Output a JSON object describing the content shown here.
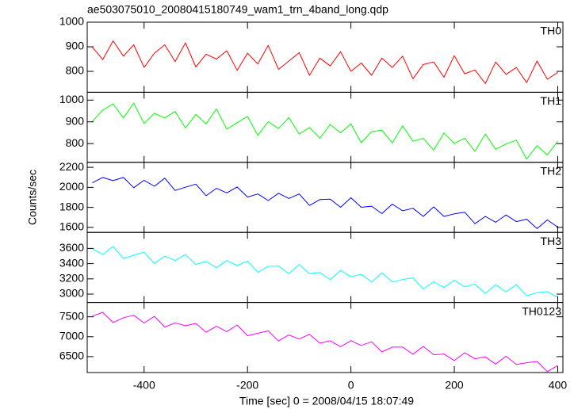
{
  "chart_data": {
    "type": "line",
    "title": "ae503075010_20080415180749_wam1_trn_4band_long.qdp",
    "xlabel": "Time [sec] 0 = 2008/04/15 18:07:49",
    "ylabel": "Counts/sec",
    "xlim": [
      -510,
      410
    ],
    "xticks": [
      -400,
      -200,
      0,
      200,
      400
    ],
    "x": [
      -500,
      -480,
      -460,
      -440,
      -420,
      -400,
      -380,
      -360,
      -340,
      -320,
      -300,
      -280,
      -260,
      -240,
      -220,
      -200,
      -180,
      -160,
      -140,
      -120,
      -100,
      -80,
      -60,
      -40,
      -20,
      0,
      20,
      40,
      60,
      80,
      100,
      120,
      140,
      160,
      180,
      200,
      220,
      240,
      260,
      280,
      300,
      320,
      340,
      360,
      380,
      400
    ],
    "series": [
      {
        "name": "TH0",
        "color": "#ff0000",
        "ylim": [
          715,
          1000
        ],
        "yticks": [
          800,
          900,
          1000
        ],
        "values": [
          898,
          848,
          924,
          862,
          908,
          816,
          874,
          908,
          840,
          916,
          818,
          870,
          850,
          884,
          804,
          874,
          830,
          906,
          808,
          842,
          876,
          784,
          854,
          822,
          880,
          800,
          834,
          784,
          854,
          816,
          862,
          770,
          828,
          838,
          776,
          864,
          790,
          806,
          750,
          838,
          788,
          816,
          754,
          842,
          768,
          796
        ]
      },
      {
        "name": "TH1",
        "color": "#00ff00",
        "ylim": [
          714,
          1036
        ],
        "yticks": [
          800,
          900,
          1000
        ],
        "values": [
          902,
          954,
          983,
          918,
          986,
          893,
          939,
          918,
          948,
          872,
          934,
          891,
          959,
          867,
          896,
          925,
          838,
          901,
          869,
          920,
          844,
          874,
          825,
          888,
          850,
          891,
          804,
          855,
          862,
          803,
          882,
          811,
          824,
          770,
          849,
          801,
          825,
          765,
          844,
          774,
          798,
          816,
          729,
          791,
          748,
          811
        ]
      },
      {
        "name": "TH2",
        "color": "#0000ff",
        "ylim": [
          1550,
          2250
        ],
        "yticks": [
          1600,
          1800,
          2000,
          2200
        ],
        "values": [
          2046,
          2099,
          2067,
          2099,
          1997,
          2071,
          2011,
          2092,
          1969,
          2001,
          2032,
          1917,
          1990,
          1945,
          2004,
          1903,
          1934,
          1868,
          1941,
          1889,
          1934,
          1819,
          1878,
          1882,
          1801,
          1896,
          1801,
          1812,
          1738,
          1833,
          1766,
          1791,
          1710,
          1805,
          1710,
          1735,
          1752,
          1637,
          1710,
          1651,
          1724,
          1658,
          1682,
          1588,
          1675,
          1602
        ]
      },
      {
        "name": "TH3",
        "color": "#00ffff",
        "ylim": [
          2890,
          3810
        ],
        "yticks": [
          3000,
          3200,
          3400,
          3600
        ],
        "values": [
          3596,
          3520,
          3625,
          3468,
          3510,
          3551,
          3403,
          3499,
          3441,
          3519,
          3389,
          3430,
          3346,
          3441,
          3375,
          3434,
          3286,
          3364,
          3369,
          3267,
          3389,
          3268,
          3283,
          3189,
          3312,
          3227,
          3259,
          3157,
          3279,
          3159,
          3191,
          3214,
          3067,
          3162,
          3087,
          3182,
          3097,
          3130,
          3009,
          3123,
          3029,
          3124,
          2977,
          3018,
          3033,
          2957
        ]
      },
      {
        "name": "TH0123",
        "color": "#ff00ff",
        "ylim": [
          6100,
          7860
        ],
        "yticks": [
          6500,
          7000,
          7500
        ],
        "values": [
          7520,
          7611,
          7357,
          7478,
          7539,
          7345,
          7511,
          7242,
          7348,
          7274,
          7335,
          7111,
          7262,
          7128,
          7294,
          7025,
          7086,
          7147,
          6893,
          7044,
          6940,
          7061,
          6837,
          6898,
          6749,
          6900,
          6781,
          6872,
          6618,
          6739,
          6740,
          6561,
          6757,
          6548,
          6564,
          6400,
          6596,
          6447,
          6493,
          6314,
          6510,
          6301,
          6347,
          6378,
          6124,
          6275
        ]
      }
    ]
  }
}
